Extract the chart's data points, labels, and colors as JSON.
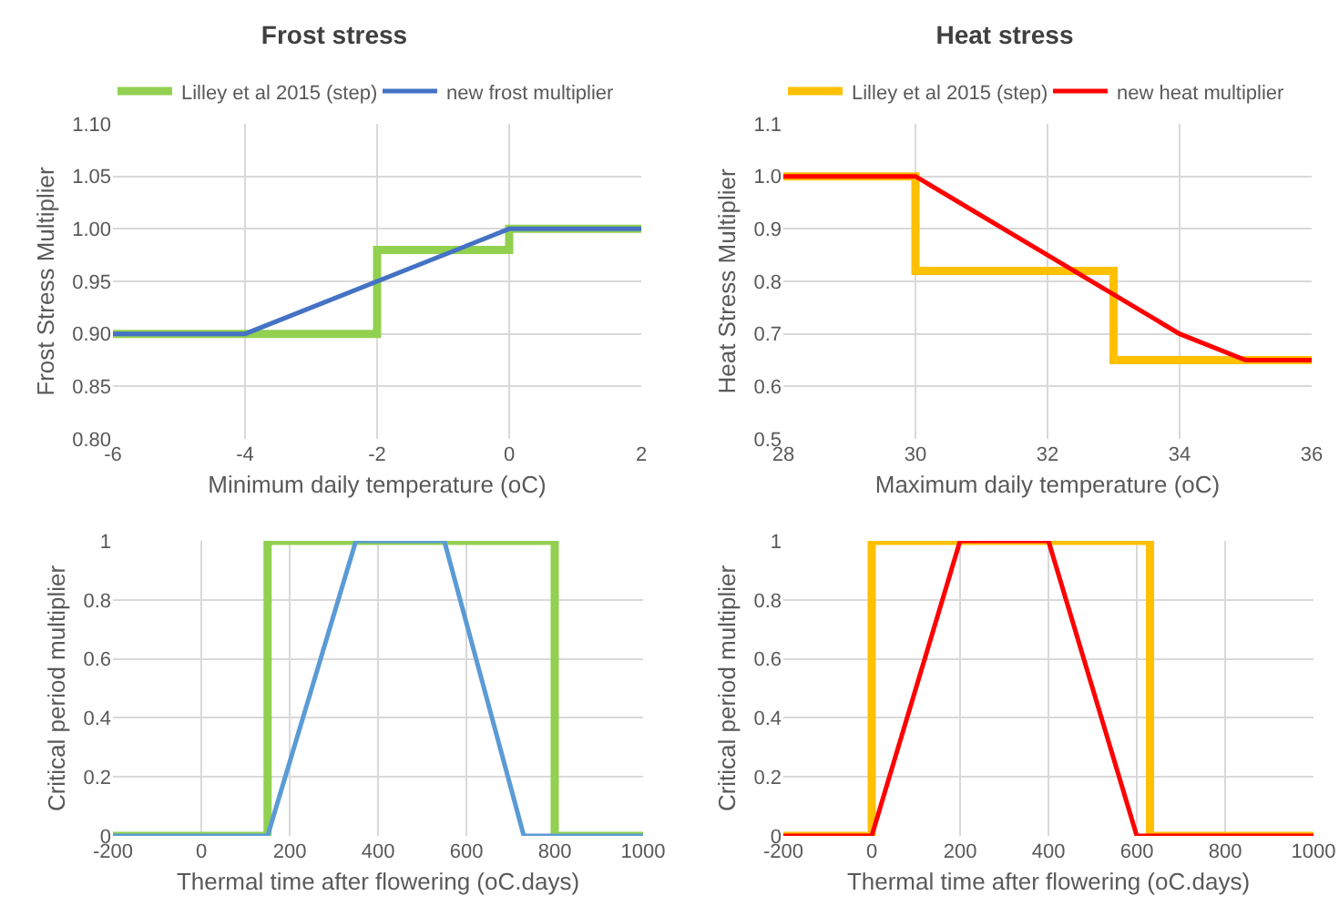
{
  "chart_data": [
    {
      "type": "line",
      "title": "Frost stress",
      "xlabel": "Minimum daily temperature (oC)",
      "ylabel": "Frost Stress Multiplier",
      "xlim": [
        -6,
        2
      ],
      "xticks": [
        -6,
        -4,
        -2,
        0,
        2
      ],
      "ylim": [
        0.8,
        1.1
      ],
      "yticks": [
        {
          "value": 0.8,
          "label": "0.80"
        },
        {
          "value": 0.85,
          "label": "0.85"
        },
        {
          "value": 0.9,
          "label": "0.90"
        },
        {
          "value": 0.95,
          "label": "0.95"
        },
        {
          "value": 1.0,
          "label": "1.00"
        },
        {
          "value": 1.05,
          "label": "1.05"
        },
        {
          "value": 1.1,
          "label": "1.10"
        }
      ],
      "grid": true,
      "legend": "top",
      "series": [
        {
          "name": "Lilley et al 2015 (step)",
          "color": "#92d050",
          "x": [
            -6,
            -2,
            -2,
            0,
            0,
            2
          ],
          "values": [
            0.9,
            0.9,
            0.98,
            0.98,
            1.0,
            1.0
          ]
        },
        {
          "name": "new frost multiplier",
          "color": "#4472c4",
          "x": [
            -6,
            -4,
            0,
            2
          ],
          "values": [
            0.9,
            0.9,
            1.0,
            1.0
          ]
        }
      ]
    },
    {
      "type": "line",
      "title": "Heat stress",
      "xlabel": "Maximum daily temperature (oC)",
      "ylabel": "Heat Stress Multiplier",
      "xlim": [
        28,
        36
      ],
      "xticks": [
        28,
        30,
        32,
        34,
        36
      ],
      "ylim": [
        0.5,
        1.1
      ],
      "yticks": [
        0.5,
        0.6,
        0.7,
        0.8,
        0.9,
        {
          "value": 1.0,
          "label": "1.0"
        },
        1.1
      ],
      "grid": true,
      "legend": "top",
      "series": [
        {
          "name": "Lilley et al 2015 (step)",
          "color": "#ffc000",
          "x": [
            28,
            30,
            30,
            33,
            33,
            36
          ],
          "values": [
            1.0,
            1.0,
            0.82,
            0.82,
            0.65,
            0.65
          ]
        },
        {
          "name": "new heat multiplier",
          "color": "#ff0000",
          "x": [
            28,
            30,
            34,
            35,
            36
          ],
          "values": [
            1.0,
            1.0,
            0.7,
            0.65,
            0.65
          ]
        }
      ]
    },
    {
      "type": "line",
      "xlabel": "Thermal time after flowering (oC.days)",
      "ylabel": "Critical period multiplier",
      "xlim": [
        -200,
        1000
      ],
      "xticks": [
        -200,
        0,
        200,
        400,
        600,
        800,
        1000
      ],
      "ylim": [
        0,
        1
      ],
      "yticks": [
        0,
        0.2,
        0.4,
        0.6,
        0.8,
        1
      ],
      "grid": true,
      "series": [
        {
          "color": "#92d050",
          "x": [
            -200,
            150,
            150,
            800,
            800,
            1000
          ],
          "values": [
            0,
            0,
            1,
            1,
            0,
            0
          ]
        },
        {
          "color": "#5b9bd5",
          "x": [
            -200,
            150,
            350,
            550,
            730,
            1000
          ],
          "values": [
            0,
            0,
            1,
            1,
            0,
            0
          ]
        }
      ]
    },
    {
      "type": "line",
      "xlabel": "Thermal time after flowering (oC.days)",
      "ylabel": "Critical period multiplier",
      "xlim": [
        -200,
        1000
      ],
      "xticks": [
        -200,
        0,
        200,
        400,
        600,
        800,
        1000
      ],
      "ylim": [
        0,
        1
      ],
      "yticks": [
        0,
        0.2,
        0.4,
        0.6,
        0.8,
        1
      ],
      "grid": true,
      "series": [
        {
          "color": "#ffc000",
          "x": [
            -200,
            0,
            0,
            630,
            630,
            1000
          ],
          "values": [
            0,
            0,
            1,
            1,
            0,
            0
          ]
        },
        {
          "color": "#ff0000",
          "x": [
            -200,
            0,
            200,
            400,
            600,
            1000
          ],
          "values": [
            0,
            0,
            1,
            1,
            0,
            0
          ]
        }
      ]
    }
  ]
}
